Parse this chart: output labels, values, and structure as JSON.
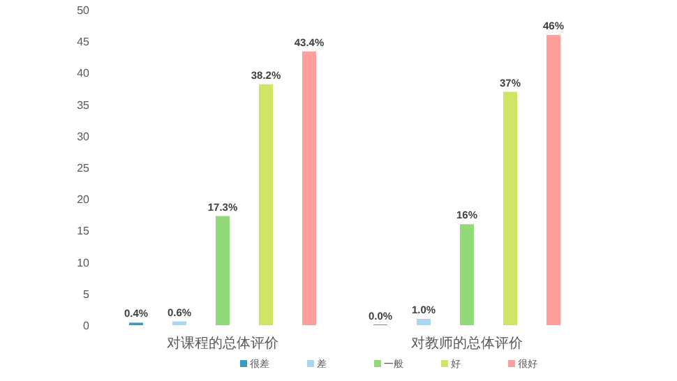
{
  "chart_data": {
    "type": "bar",
    "categories": [
      "对课程的总体评价",
      "对教师的总体评价"
    ],
    "series": [
      {
        "name": "很差",
        "color": "#3a9ac9",
        "values": [
          0.4,
          0.0
        ],
        "value_labels": [
          "0.4%",
          "0.0%"
        ]
      },
      {
        "name": "差",
        "color": "#a9d6f0",
        "values": [
          0.6,
          1.0
        ],
        "value_labels": [
          "0.6%",
          "1.0%"
        ]
      },
      {
        "name": "一般",
        "color": "#92d97a",
        "values": [
          17.3,
          16
        ],
        "value_labels": [
          "17.3%",
          "16%"
        ]
      },
      {
        "name": "好",
        "color": "#cfe565",
        "values": [
          38.2,
          37
        ],
        "value_labels": [
          "38.2%",
          "37%"
        ]
      },
      {
        "name": "很好",
        "color": "#ff9f9c",
        "values": [
          43.4,
          46
        ],
        "value_labels": [
          "43.4%",
          "46%"
        ]
      }
    ],
    "ylim": [
      0,
      50
    ],
    "yticks": [
      0,
      5,
      10,
      15,
      20,
      25,
      30,
      35,
      40,
      45,
      50
    ],
    "grid": false,
    "legend": "bottom"
  }
}
